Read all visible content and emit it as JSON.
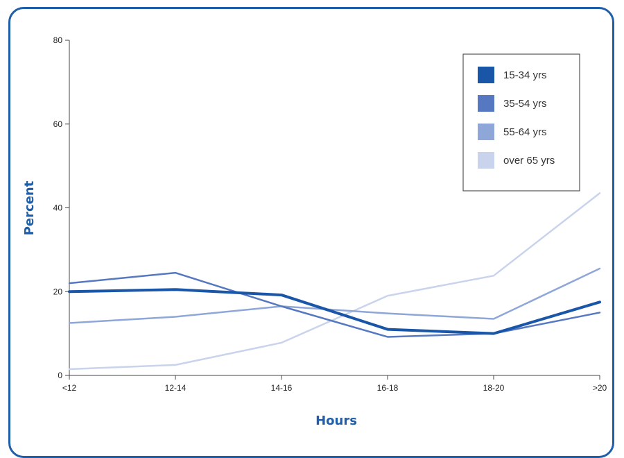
{
  "chart_data": {
    "type": "line",
    "title": "",
    "xlabel": "Hours",
    "ylabel": "Percent",
    "categories": [
      "<12",
      "12-14",
      "14-16",
      "16-18",
      "18-20",
      ">20"
    ],
    "ylim": [
      0,
      80
    ],
    "yticks": [
      "0",
      "20",
      "40",
      "60",
      "80"
    ],
    "grid": false,
    "legend_position": "top-right",
    "series": [
      {
        "name": "15-34 yrs",
        "color": "#1a56a8",
        "width": 4,
        "values": [
          20,
          20.5,
          19.2,
          11,
          10,
          17.5
        ]
      },
      {
        "name": "35-54 yrs",
        "color": "#5578c0",
        "width": 2.5,
        "values": [
          22,
          24.5,
          16.5,
          9.2,
          10,
          15
        ]
      },
      {
        "name": "55-64 yrs",
        "color": "#8fa6d8",
        "width": 2.5,
        "values": [
          12.5,
          14,
          16.5,
          14.8,
          13.5,
          25.5
        ]
      },
      {
        "name": "over 65 yrs",
        "color": "#c9d3ec",
        "width": 2.5,
        "values": [
          1.5,
          2.5,
          7.8,
          19,
          23.8,
          43.5
        ]
      }
    ]
  }
}
